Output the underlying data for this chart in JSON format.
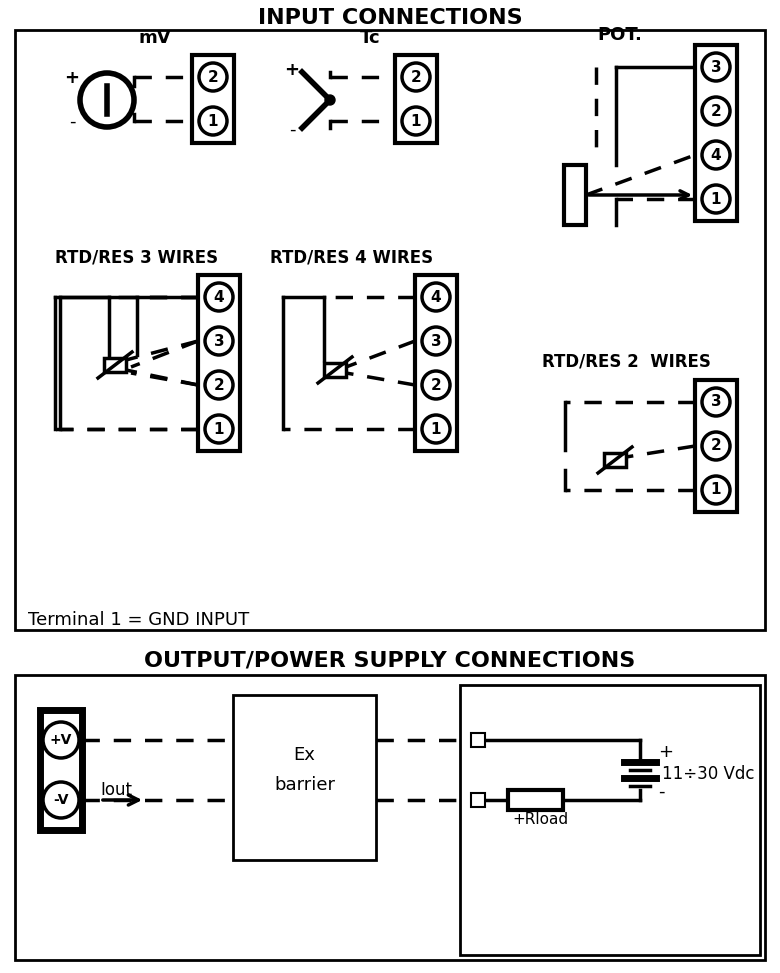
{
  "title_input": "INPUT CONNECTIONS",
  "title_output": "OUTPUT/POWER SUPPLY CONNECTIONS",
  "terminal_note": "Terminal 1 = GND INPUT",
  "bg_color": "#ffffff",
  "line_color": "#000000",
  "fig_width": 7.8,
  "fig_height": 9.73
}
